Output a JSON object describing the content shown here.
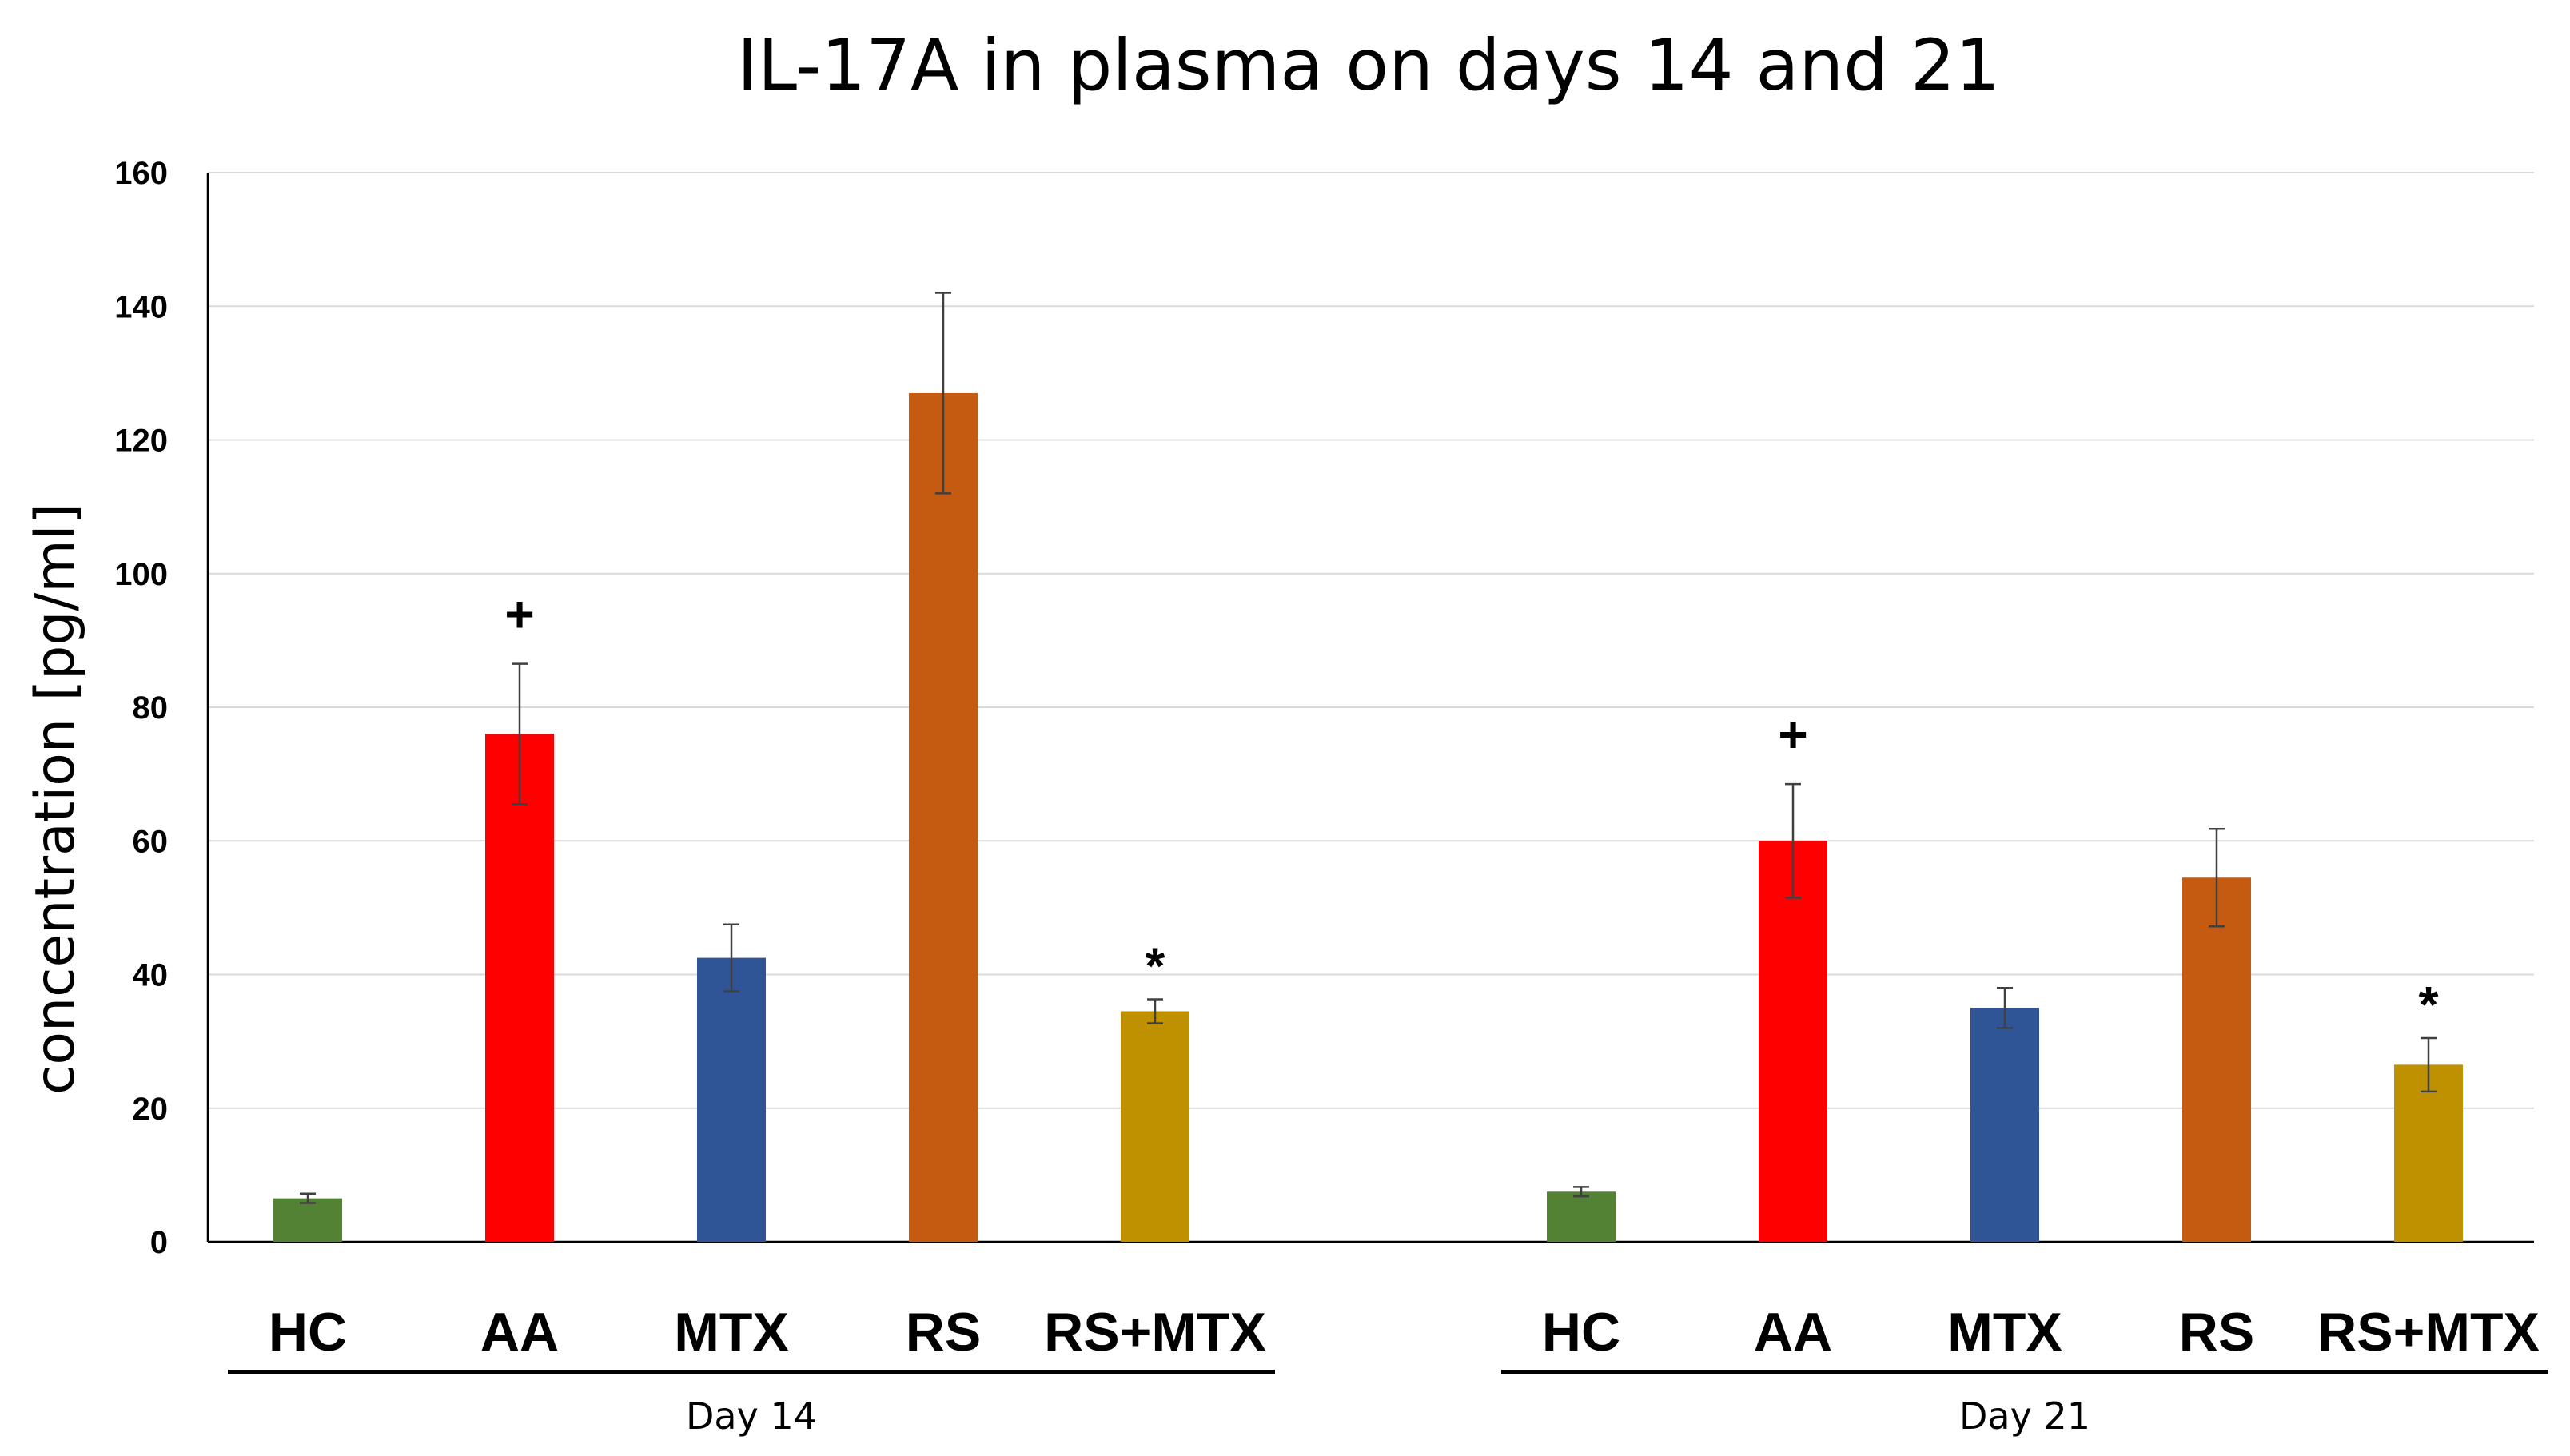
{
  "chart_data": {
    "type": "bar",
    "title": "IL-17A in plasma on days 14 and 21",
    "ylabel": "concentration [pg/ml]",
    "xlabel": "",
    "ylim": [
      0,
      160
    ],
    "yticks": [
      "0",
      "20",
      "40",
      "60",
      "80",
      "100",
      "120",
      "140",
      "160"
    ],
    "grid": true,
    "groups": [
      {
        "label": "Day 14",
        "bars": [
          {
            "category": "HC",
            "value": 6.5,
            "error": 0.7,
            "color": "#548235",
            "annotation": ""
          },
          {
            "category": "AA",
            "value": 76,
            "error": 10.5,
            "color": "#ff0000",
            "annotation": "+"
          },
          {
            "category": "MTX",
            "value": 42.5,
            "error": 5,
            "color": "#2f5597",
            "annotation": ""
          },
          {
            "category": "RS",
            "value": 127,
            "error": 15,
            "color": "#c55a11",
            "annotation": ""
          },
          {
            "category": "RS+MTX",
            "value": 34.5,
            "error": 1.8,
            "color": "#bf9000",
            "annotation": "*"
          }
        ]
      },
      {
        "label": "Day 21",
        "bars": [
          {
            "category": "HC",
            "value": 7.5,
            "error": 0.7,
            "color": "#548235",
            "annotation": ""
          },
          {
            "category": "AA",
            "value": 60,
            "error": 8.5,
            "color": "#ff0000",
            "annotation": "+"
          },
          {
            "category": "MTX",
            "value": 35,
            "error": 3,
            "color": "#2f5597",
            "annotation": ""
          },
          {
            "category": "RS",
            "value": 54.5,
            "error": 7.3,
            "color": "#c55a11",
            "annotation": ""
          },
          {
            "category": "RS+MTX",
            "value": 26.5,
            "error": 4,
            "color": "#bf9000",
            "annotation": "*"
          }
        ]
      }
    ]
  }
}
